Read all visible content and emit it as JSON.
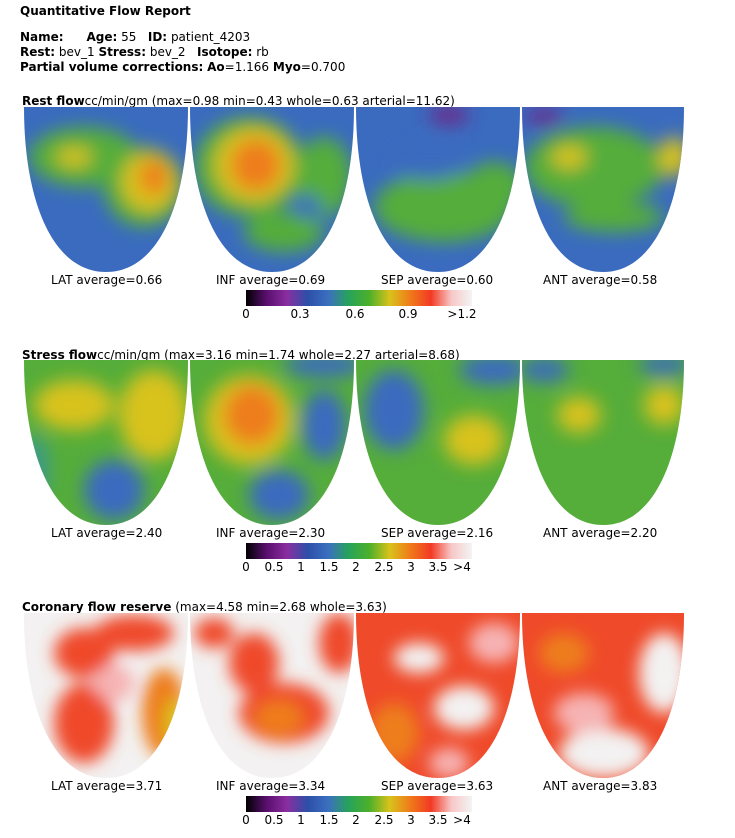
{
  "report": {
    "title": "Quantitative Flow Report",
    "name_label": "Name:",
    "age_label": "Age:",
    "age": "55",
    "id_label": "ID:",
    "id": "patient_4203",
    "rest_label": "Rest:",
    "rest": "bev_1",
    "stress_label": "Stress:",
    "stress": "bev_2",
    "isotope_label": "Isotope:",
    "isotope": "rb",
    "pvc_label": "Partial volume corrections:",
    "ao_label": "Ao",
    "ao": "=1.166",
    "myo_label": "Myo",
    "myo": "=0.700"
  },
  "sections": [
    {
      "key": "rest",
      "title": "Rest flow",
      "subtitle": "cc/min/gm (max=0.98 min=0.43 whole=0.63 arterial=11.62)",
      "averages": [
        "LAT average=0.66",
        "INF average=0.69",
        "SEP average=0.60",
        "ANT average=0.58"
      ],
      "scale_ticks": [
        "0",
        "0.3",
        "0.6",
        "0.9",
        ">1.2"
      ]
    },
    {
      "key": "stress",
      "title": "Stress flow",
      "subtitle": "cc/min/gm (max=3.16 min=1.74 whole=2.27 arterial=8.68)",
      "averages": [
        "LAT average=2.40",
        "INF average=2.30",
        "SEP average=2.16",
        "ANT average=2.20"
      ],
      "scale_ticks": [
        "0",
        "0.5",
        "1",
        "1.5",
        "2",
        "2.5",
        "3",
        "3.5",
        ">4"
      ]
    },
    {
      "key": "cfr",
      "title": "Coronary flow reserve",
      "subtitle": "(max=4.58 min=2.68 whole=3.63)",
      "averages": [
        "LAT average=3.71",
        "INF average=3.34",
        "SEP average=3.63",
        "ANT average=3.83"
      ],
      "scale_ticks": [
        "0",
        "0.5",
        "1",
        "1.5",
        "2",
        "2.5",
        "3",
        "3.5",
        ">4"
      ]
    }
  ],
  "colorscale": [
    "#000000",
    "#5a0f6e",
    "#8a2ea0",
    "#2c4fa8",
    "#3b6fc0",
    "#27a35a",
    "#4cb02a",
    "#d9c21a",
    "#f07a1a",
    "#f23a24",
    "#f7c7c7",
    "#f4f4f4"
  ],
  "map_colors": {
    "blue": "#3a6bbf",
    "teal": "#3a9a8a",
    "green": "#55ad3a",
    "yellow": "#d8c21c",
    "orange": "#ee7d1e",
    "red": "#ef4a2a",
    "pink": "#f6b3b3",
    "white": "#f3f1f1",
    "purple": "#6a2a8a"
  }
}
